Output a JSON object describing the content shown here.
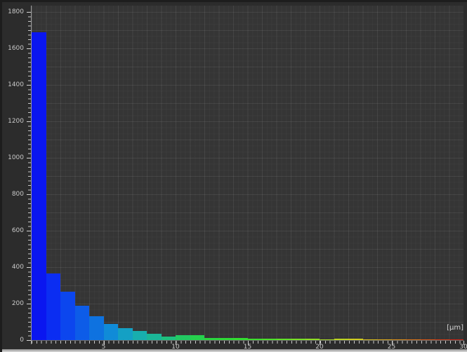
{
  "chart_data": {
    "type": "bar",
    "title": "",
    "subtitle": "",
    "xlabel": "[µm]",
    "ylabel": "",
    "xlim": [
      0,
      30
    ],
    "ylim": [
      0,
      1800
    ],
    "bin_width": 1,
    "grid": "on",
    "legend": "none",
    "x_tick_values": [
      5,
      10,
      15,
      20,
      25,
      30
    ],
    "x_tick_labels": [
      "5",
      "10",
      "15",
      "20",
      "25",
      "30"
    ],
    "y_tick_values": [
      1800,
      1600,
      1400,
      1200,
      1000,
      800,
      600,
      400,
      200,
      0
    ],
    "y_tick_labels": [
      "1800",
      "1600",
      "1400",
      "1200",
      "1000",
      "800",
      "600",
      "400",
      "200",
      "0"
    ],
    "bin_start_values": [
      0,
      1,
      2,
      3,
      4,
      5,
      6,
      7,
      8,
      9,
      10,
      11,
      12,
      13,
      14,
      15,
      16,
      17,
      18,
      19,
      20,
      21,
      22,
      23,
      24,
      25,
      26,
      27,
      28,
      29
    ],
    "values": [
      1690,
      365,
      265,
      188,
      131,
      88,
      64,
      49,
      36,
      20,
      27,
      26,
      13,
      11,
      10,
      9,
      8,
      7,
      6,
      6,
      5,
      7,
      8,
      5,
      4,
      4,
      3,
      3,
      3,
      3
    ],
    "bar_colors": [
      "#0a16f0",
      "#0b2df2",
      "#0c46ee",
      "#0d5ce8",
      "#0e72e0",
      "#108bd8",
      "#14a0c4",
      "#18aeae",
      "#1bb697",
      "#1ec07e",
      "#22c962",
      "#26d14d",
      "#2ad53e",
      "#2ed936",
      "#32dd30",
      "#3cdf2c",
      "#4ce02a",
      "#60e128",
      "#78e026",
      "#8edd24",
      "#a5d922",
      "#bcd420",
      "#cfcc1e",
      "#d8bd1c",
      "#dca81a",
      "#dd8f18",
      "#dc7316",
      "#da5514",
      "#d63a12",
      "#d02010"
    ]
  },
  "colors": {
    "panel_background": "#2c2c2c",
    "plot_background": "#353535",
    "grid_major": "#454545",
    "grid_minor": "#3c3c3c",
    "axis_line": "#9a9a9a",
    "tick_mark": "#d6d6d6",
    "tick_label": "#c8c8c8"
  }
}
